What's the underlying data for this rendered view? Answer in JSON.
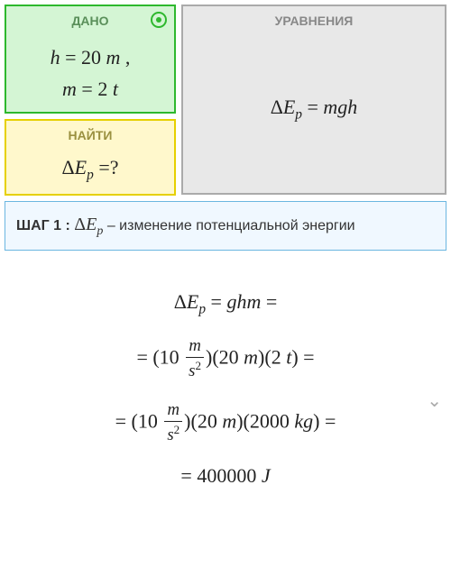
{
  "given": {
    "title": "ДАНО",
    "line1": "h = 20 m ,",
    "line2": "m = 2 t",
    "bg_color": "#d4f5d4",
    "border_color": "#2eb82e"
  },
  "find": {
    "title": "НАЙТИ",
    "expression": "ΔE_p = ?",
    "bg_color": "#fff8cc",
    "border_color": "#e6d000"
  },
  "equations": {
    "title": "УРАВНЕНИЯ",
    "expression": "ΔE_p = mgh",
    "bg_color": "#e8e8e8",
    "border_color": "#aaa"
  },
  "step": {
    "label": "ШАГ 1 :",
    "symbol": "ΔE_p",
    "description": "– изменение потенциальной энергии",
    "bg_color": "#f0f8ff",
    "border_color": "#6bb6e0"
  },
  "calculation": {
    "line1": "ΔE_p = ghm =",
    "line2_g": "10",
    "line2_g_unit_num": "m",
    "line2_g_unit_den": "s²",
    "line2_h": "20 m",
    "line2_m": "2 t",
    "line3_g": "10",
    "line3_h": "20 m",
    "line3_m": "2000 kg",
    "result": "= 400000 J"
  }
}
